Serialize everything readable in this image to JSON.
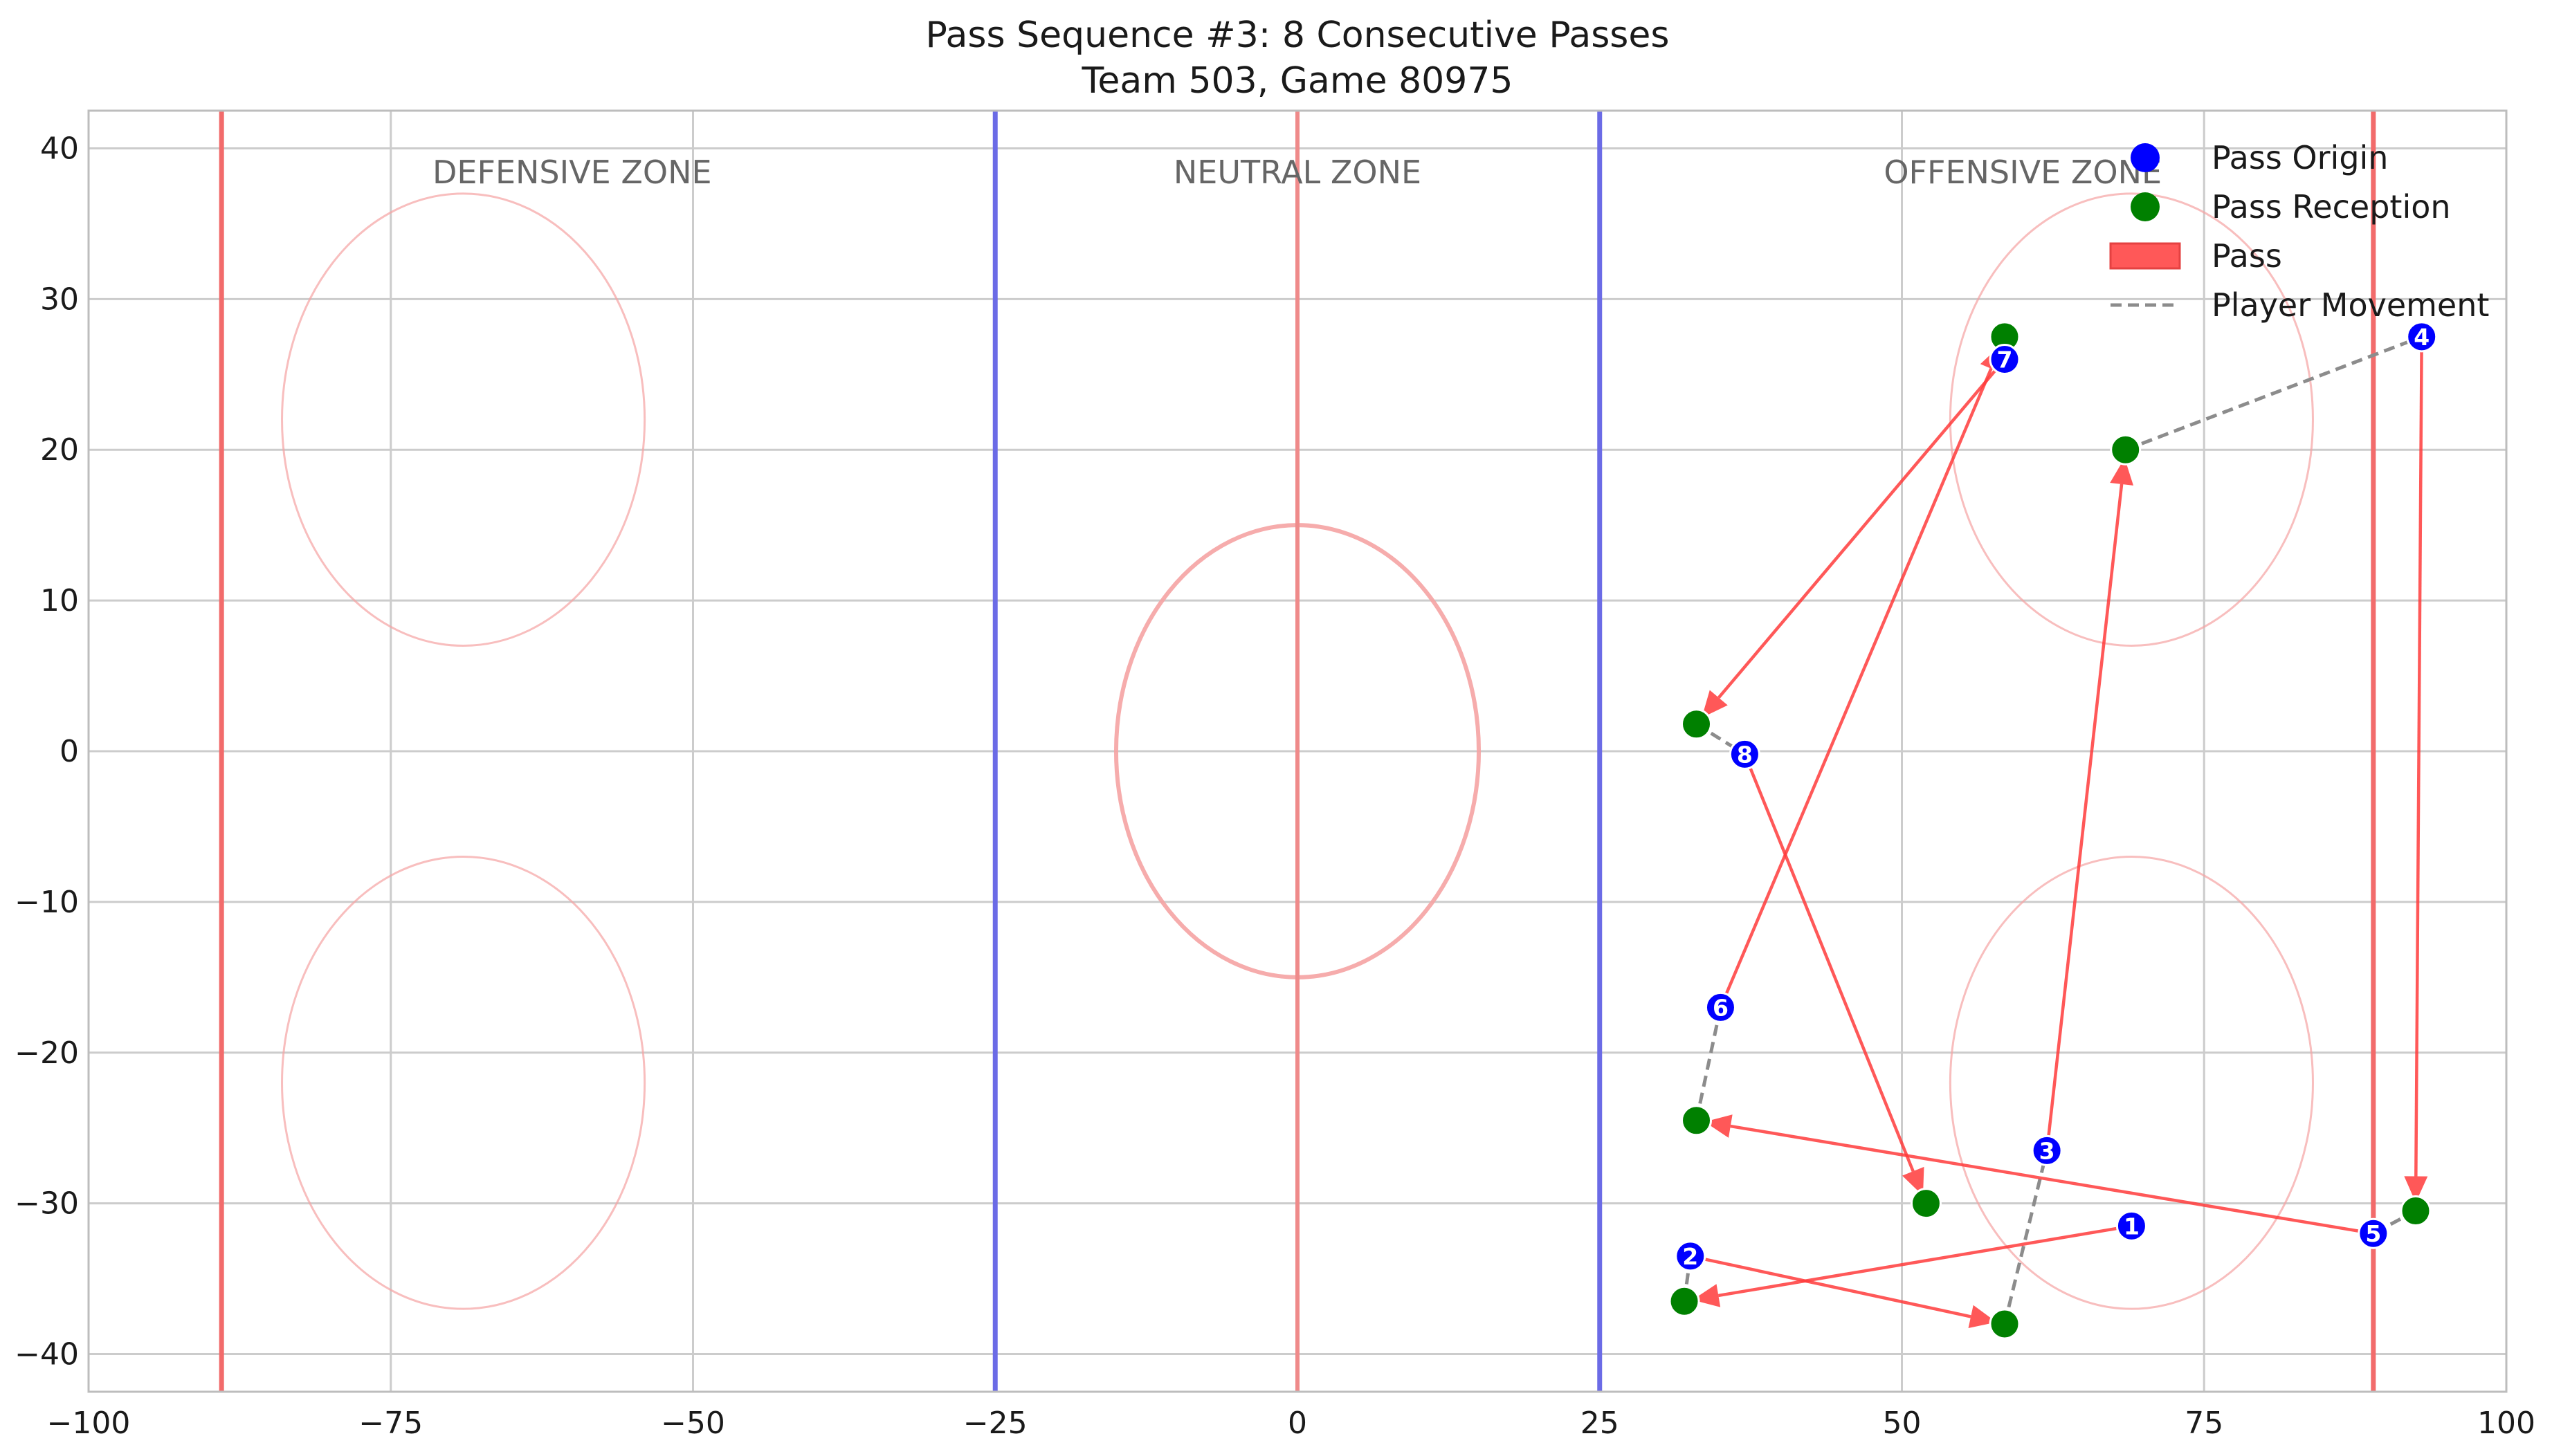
{
  "chart_data": {
    "type": "scatter",
    "title": "Pass Sequence #3: 8 Consecutive Passes",
    "subtitle": "Team 503, Game 80975",
    "xlabel": "",
    "ylabel": "",
    "xlim": [
      -100,
      100
    ],
    "ylim": [
      -42.5,
      42.5
    ],
    "x_ticks": [
      -100,
      -75,
      -50,
      -25,
      0,
      25,
      50,
      75,
      100
    ],
    "y_ticks": [
      -40,
      -30,
      -20,
      -10,
      0,
      10,
      20,
      30,
      40
    ],
    "grid": true,
    "legend_position": "top-right",
    "zone_labels": [
      {
        "text": "DEFENSIVE ZONE",
        "x": -60,
        "y": 38.5
      },
      {
        "text": "NEUTRAL ZONE",
        "x": 0,
        "y": 38.5
      },
      {
        "text": "OFFENSIVE ZONE",
        "x": 60,
        "y": 38.5
      }
    ],
    "rink": {
      "goal_lines": [
        -89,
        89
      ],
      "blue_lines": [
        -25,
        25
      ],
      "center_line": 0,
      "center_circle": {
        "x": 0,
        "y": 0,
        "r": 15
      },
      "faceoff_circles": [
        {
          "x": -69,
          "y": 22,
          "r": 15
        },
        {
          "x": -69,
          "y": -22,
          "r": 15
        },
        {
          "x": 69,
          "y": 22,
          "r": 15
        },
        {
          "x": 69,
          "y": -22,
          "r": 15
        }
      ],
      "colors": {
        "goal_line": "#f26b6b",
        "blue_line": "#6b6be6",
        "center_line": "#ef8a8a",
        "circle": "#f5a3a3"
      }
    },
    "passes": [
      {
        "label": "1",
        "origin": [
          69,
          -31.5
        ],
        "reception": [
          32,
          -36.5
        ]
      },
      {
        "label": "2",
        "origin": [
          32.5,
          -33.5
        ],
        "reception": [
          58.5,
          -38
        ]
      },
      {
        "label": "3",
        "origin": [
          62,
          -26.5
        ],
        "reception": [
          68.5,
          20
        ]
      },
      {
        "label": "4",
        "origin": [
          93,
          27.5
        ],
        "reception": [
          92.5,
          -30.5
        ]
      },
      {
        "label": "5",
        "origin": [
          89,
          -32
        ],
        "reception": [
          33,
          -24.5
        ]
      },
      {
        "label": "6",
        "origin": [
          35,
          -17
        ],
        "reception": [
          58.5,
          27.5
        ]
      },
      {
        "label": "7",
        "origin": [
          58.5,
          26
        ],
        "reception": [
          33,
          1.8
        ]
      },
      {
        "label": "8",
        "origin": [
          37,
          -0.2
        ],
        "reception": [
          52,
          -30
        ]
      }
    ],
    "movements": [
      {
        "from": [
          32,
          -36.5
        ],
        "to": [
          32.5,
          -33.5
        ]
      },
      {
        "from": [
          58.5,
          -38
        ],
        "to": [
          62,
          -26.5
        ]
      },
      {
        "from": [
          68.5,
          20
        ],
        "to": [
          93,
          27.5
        ]
      },
      {
        "from": [
          92.5,
          -30.5
        ],
        "to": [
          89,
          -32
        ]
      },
      {
        "from": [
          33,
          -24.5
        ],
        "to": [
          35,
          -17
        ]
      },
      {
        "from": [
          58.5,
          27.5
        ],
        "to": [
          58.5,
          26
        ]
      },
      {
        "from": [
          33,
          1.8
        ],
        "to": [
          37,
          -0.2
        ]
      }
    ],
    "legend": [
      {
        "label": "Pass Origin",
        "kind": "origin"
      },
      {
        "label": "Pass Reception",
        "kind": "reception"
      },
      {
        "label": "Pass",
        "kind": "pass"
      },
      {
        "label": "Player Movement",
        "kind": "movement"
      }
    ],
    "colors": {
      "origin": "#0000ff",
      "reception": "#008000",
      "pass": "#ff3b3b",
      "movement": "#8c8c8c",
      "grid": "#cccccc",
      "axes_edge": "#bdbdbd",
      "zone_text": "#666666"
    }
  }
}
